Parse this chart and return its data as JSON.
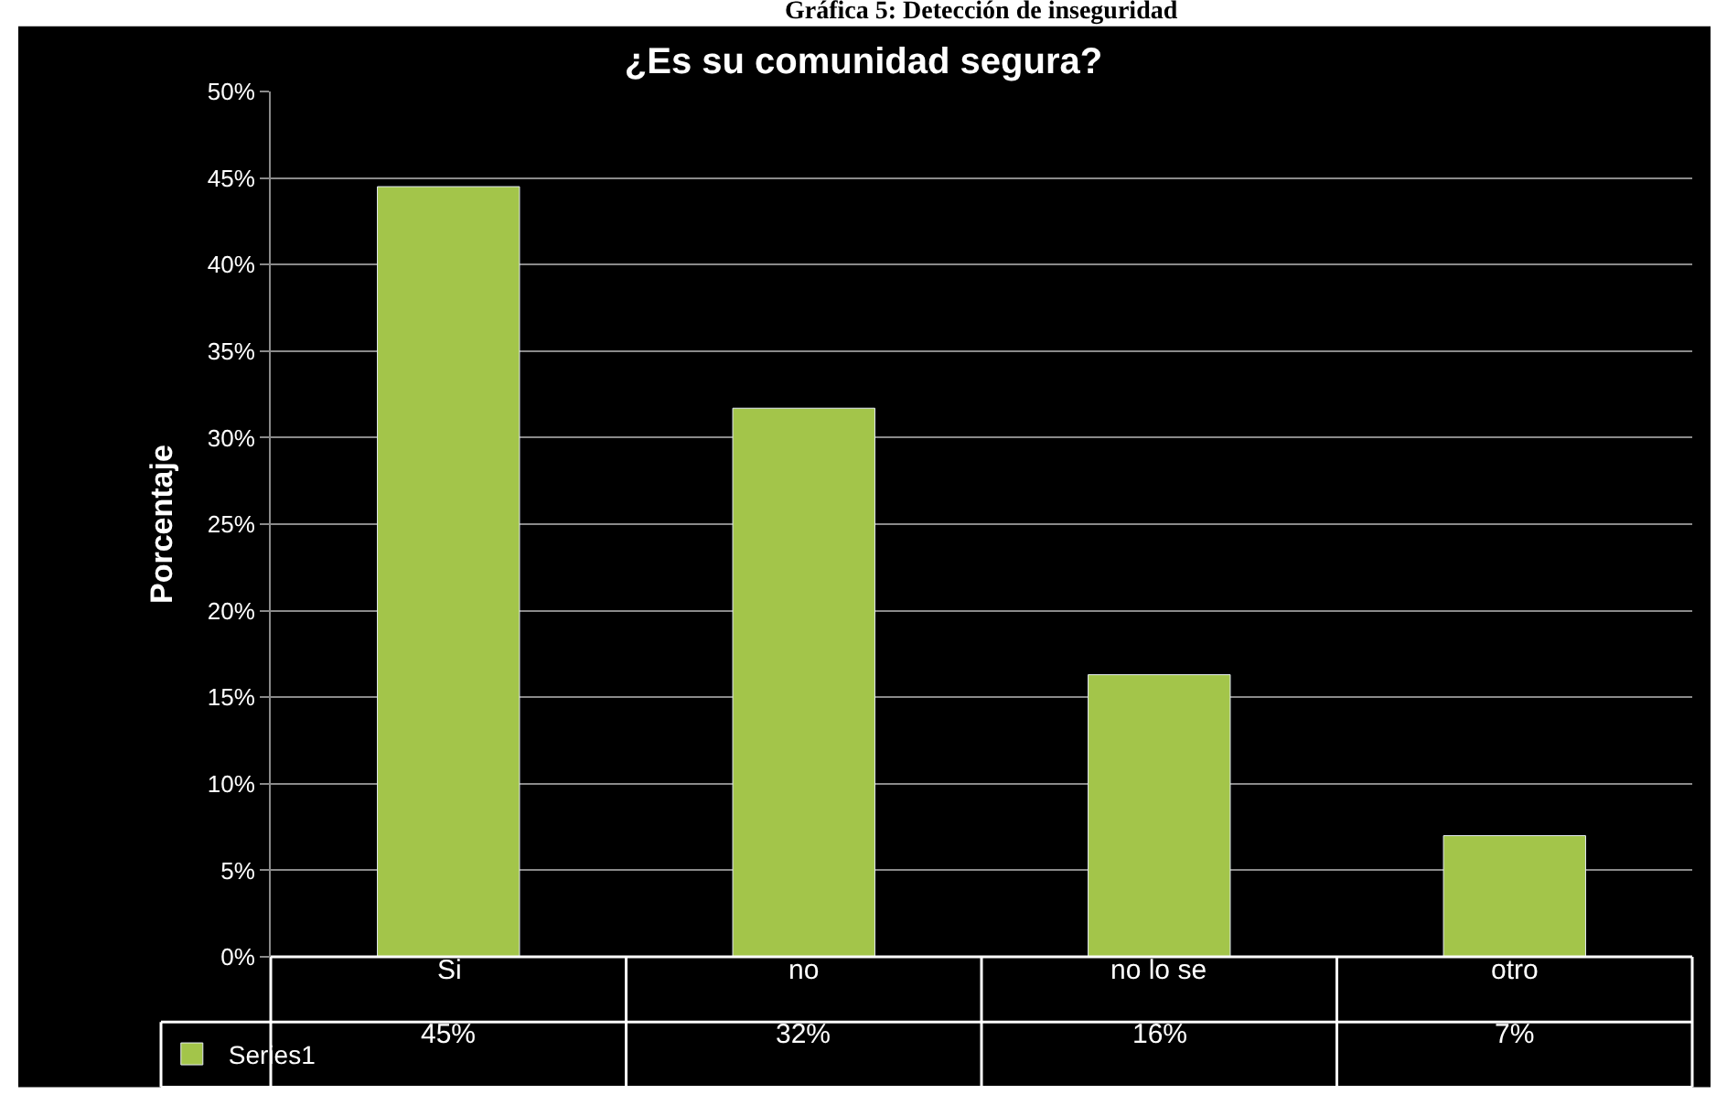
{
  "chart_data": {
    "type": "bar",
    "title": "¿Es su comunidad segura?",
    "ylabel": "Porcentaje",
    "annotations": [
      "Gráfica 5: Detección de inseguridad"
    ],
    "categories": [
      "Si",
      "no",
      "no lo se",
      "otro"
    ],
    "series": [
      {
        "name": "Series1",
        "color": "#a3c54a",
        "values": [
          44.5,
          31.7,
          16.3,
          7.0
        ],
        "value_labels": [
          "45%",
          "32%",
          "16%",
          "7%"
        ]
      }
    ],
    "ylim": [
      0,
      50
    ],
    "yticks": [
      {
        "value": 0,
        "label": "0%"
      },
      {
        "value": 5,
        "label": "5%"
      },
      {
        "value": 10,
        "label": "10%"
      },
      {
        "value": 15,
        "label": "15%"
      },
      {
        "value": 20,
        "label": "20%"
      },
      {
        "value": 25,
        "label": "25%"
      },
      {
        "value": 30,
        "label": "30%"
      },
      {
        "value": 35,
        "label": "35%"
      },
      {
        "value": 40,
        "label": "40%"
      },
      {
        "value": 45,
        "label": "45%"
      },
      {
        "value": 50,
        "label": "50%"
      }
    ],
    "grid": "y",
    "legend": "bottom left"
  }
}
